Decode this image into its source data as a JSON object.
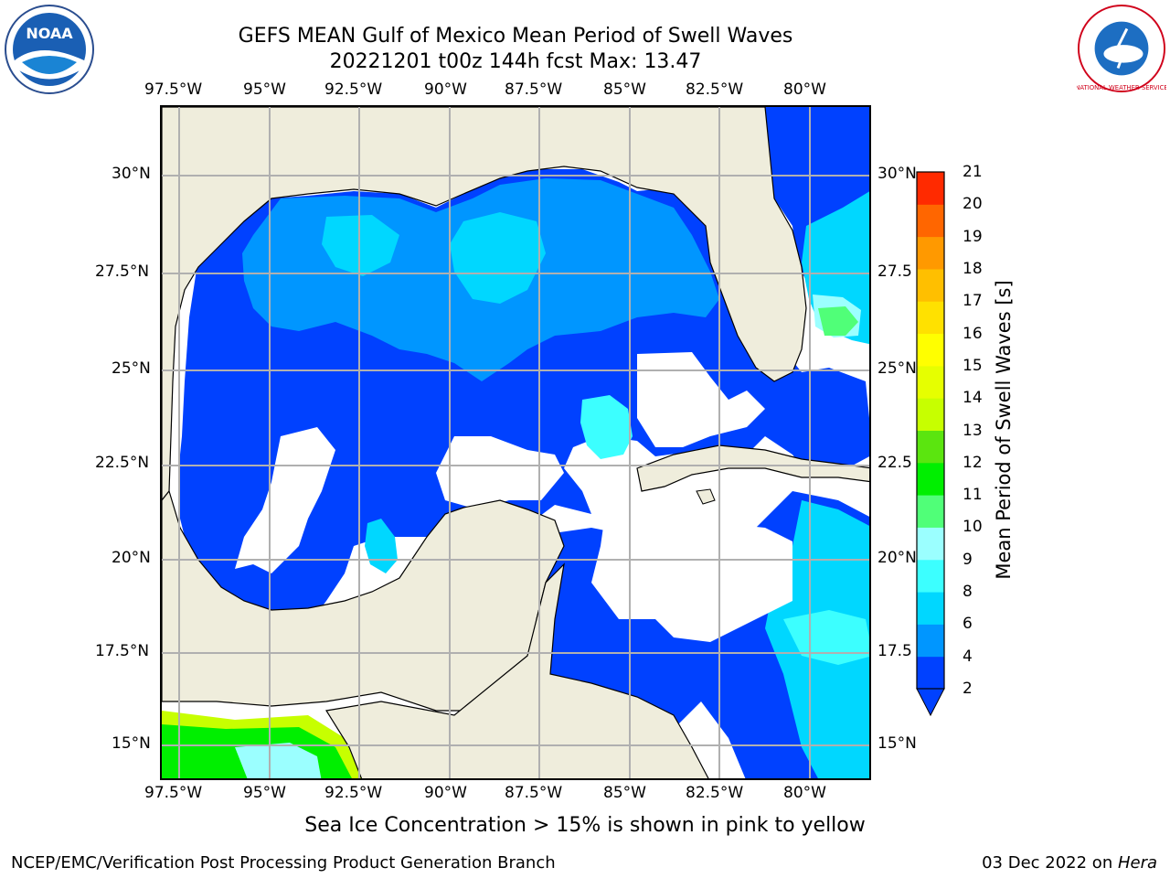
{
  "title": {
    "line1": "GEFS MEAN Gulf of Mexico Mean Period of Swell Waves",
    "line2": "20221201 t00z 144h fcst   Max: 13.47"
  },
  "logos": {
    "left": "noaa-logo",
    "right": "nws-logo",
    "left_text": "NOAA",
    "right_text": "NATIONAL WEATHER SERVICE"
  },
  "map": {
    "projection": "plate-carree",
    "lon_labels": [
      "97.5°W",
      "95°W",
      "92.5°W",
      "90°W",
      "87.5°W",
      "85°W",
      "82.5°W",
      "80°W"
    ],
    "lat_labels_left": [
      "30°N",
      "27.5°N",
      "25°N",
      "22.5°N",
      "20°N",
      "17.5°N",
      "15°N"
    ],
    "lat_labels_right": [
      "30°N",
      "27.5",
      "25°N",
      "22.5",
      "20°N",
      "17.5",
      "15°N"
    ],
    "lon_range": [
      -98,
      -78.3
    ],
    "lat_range": [
      14,
      31.8
    ],
    "grid": true,
    "colors": {
      "land": "#efeddc",
      "missing": "#ffffff",
      "gridline": "#b0b0b0",
      "coast": "#000000"
    }
  },
  "colorbar": {
    "label": "Mean Period of Swell Waves [s]",
    "ticks": [
      "2",
      "4",
      "6",
      "8",
      "9",
      "10",
      "11",
      "12",
      "13",
      "14",
      "15",
      "16",
      "17",
      "18",
      "19",
      "20",
      "21"
    ],
    "colors": [
      "#0041ff",
      "#0096ff",
      "#00d7ff",
      "#3cffff",
      "#9bffff",
      "#50ff78",
      "#00ef00",
      "#5be50f",
      "#c7ff00",
      "#e6ff00",
      "#ffff00",
      "#ffe100",
      "#ffbf00",
      "#ff9900",
      "#ff6600",
      "#ff2a00",
      "#ff0000"
    ],
    "extend": "min"
  },
  "note": "Sea Ice Concentration > 15% is shown in pink to yellow",
  "footer": {
    "left": "NCEP/EMC/Verification Post Processing Product Generation Branch",
    "date": "03 Dec 2022 on ",
    "machine": "Hera"
  }
}
